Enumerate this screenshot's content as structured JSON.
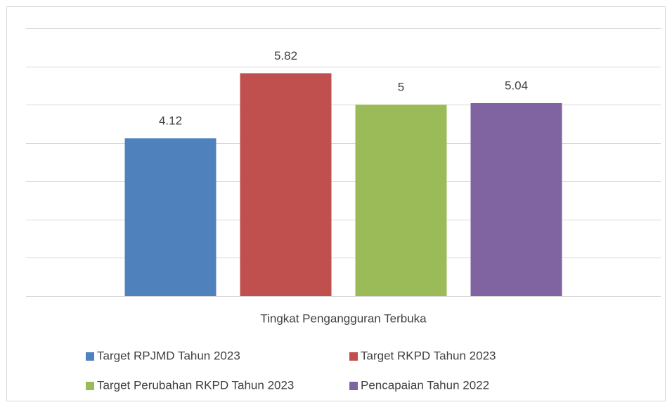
{
  "chart_data": {
    "type": "bar",
    "categories": [
      "Tingkat Pengangguran Terbuka"
    ],
    "series": [
      {
        "name": "Target RPJMD Tahun 2023",
        "color": "#4f81bd",
        "values": [
          4.12
        ]
      },
      {
        "name": "Target RKPD Tahun 2023",
        "color": "#c0504d",
        "values": [
          5.82
        ]
      },
      {
        "name": "Target Perubahan RKPD Tahun 2023",
        "color": "#9bbb59",
        "values": [
          5
        ]
      },
      {
        "name": "Pencapaian Tahun 2022",
        "color": "#8064a2",
        "values": [
          5.04
        ]
      }
    ],
    "ylim": [
      0,
      7
    ],
    "yticks": [
      0,
      1,
      2,
      3,
      4,
      5,
      6,
      7
    ],
    "grid": true,
    "legend": "bottom"
  }
}
